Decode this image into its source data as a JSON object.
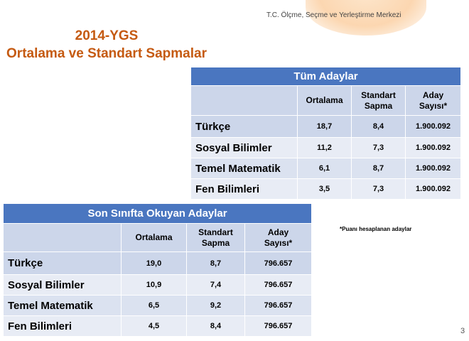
{
  "header": {
    "org": "T.C. Ölçme, Seçme ve Yerleştirme Merkezi",
    "title_line1": "2014-YGS",
    "title_line2": "Ortalama ve Standart Sapmalar"
  },
  "table1": {
    "title": "Tüm Adaylar",
    "columns": [
      "Ortalama",
      "Standart Sapma",
      "Aday Sayısı*"
    ],
    "rows": [
      {
        "name": "Türkçe",
        "ortalama": "18,7",
        "sapma": "8,4",
        "sayi": "1.900.092"
      },
      {
        "name": "Sosyal Bilimler",
        "ortalama": "11,2",
        "sapma": "7,3",
        "sayi": "1.900.092"
      },
      {
        "name": "Temel Matematik",
        "ortalama": "6,1",
        "sapma": "8,7",
        "sayi": "1.900.092"
      },
      {
        "name": "Fen Bilimleri",
        "ortalama": "3,5",
        "sapma": "7,3",
        "sayi": "1.900.092"
      }
    ]
  },
  "table2": {
    "title": "Son Sınıfta Okuyan Adaylar",
    "columns": [
      "Ortalama",
      "Standart Sapma",
      "Aday Sayısı*"
    ],
    "rows": [
      {
        "name": "Türkçe",
        "ortalama": "19,0",
        "sapma": "8,7",
        "sayi": "796.657"
      },
      {
        "name": "Sosyal Bilimler",
        "ortalama": "10,9",
        "sapma": "7,4",
        "sayi": "796.657"
      },
      {
        "name": "Temel Matematik",
        "ortalama": "6,5",
        "sapma": "9,2",
        "sayi": "796.657"
      },
      {
        "name": "Fen Bilimleri",
        "ortalama": "4,5",
        "sapma": "8,4",
        "sayi": "796.657"
      }
    ]
  },
  "footnote": "*Puanı hesaplanan adaylar",
  "page_number": "3"
}
